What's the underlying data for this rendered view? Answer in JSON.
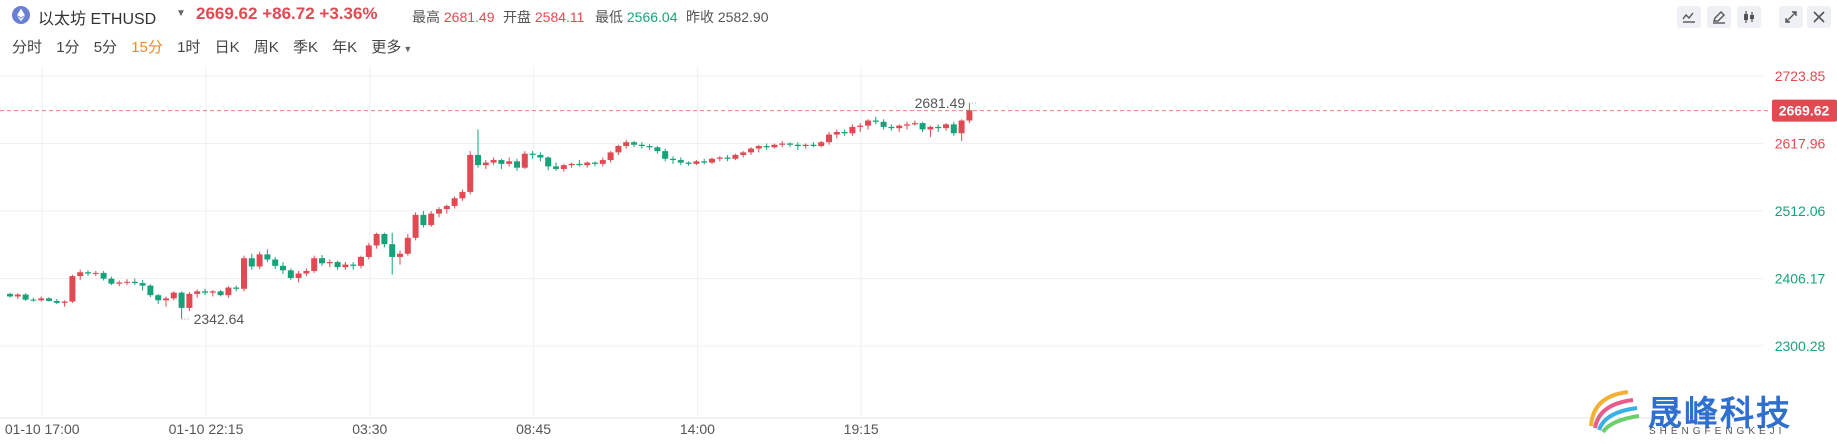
{
  "header": {
    "coin_name": "以太坊 ETHUSD",
    "last_price": "2669.62",
    "change": "+86.72",
    "change_pct": "+3.36%",
    "stats": [
      {
        "label": "最高",
        "value": "2681.49",
        "tone": "up"
      },
      {
        "label": "开盘",
        "value": "2584.11",
        "tone": "up"
      },
      {
        "label": "最低",
        "value": "2566.04",
        "tone": "down"
      },
      {
        "label": "昨收",
        "value": "2582.90",
        "tone": "neutral"
      }
    ]
  },
  "toolbar": {
    "icons": [
      "line-tool-icon",
      "pencil-icon",
      "candlestick-icon",
      "expand-icon",
      "close-icon"
    ]
  },
  "periods": [
    {
      "label": "分时",
      "active": false
    },
    {
      "label": "1分",
      "active": false
    },
    {
      "label": "5分",
      "active": false
    },
    {
      "label": "15分",
      "active": true
    },
    {
      "label": "1时",
      "active": false
    },
    {
      "label": "日K",
      "active": false
    },
    {
      "label": "周K",
      "active": false
    },
    {
      "label": "季K",
      "active": false
    },
    {
      "label": "年K",
      "active": false
    },
    {
      "label": "更多",
      "active": false,
      "dropdown": true
    }
  ],
  "chart_data": {
    "type": "candlestick",
    "y_ticks": [
      2723.85,
      2617.96,
      2512.06,
      2406.17,
      2300.28
    ],
    "ylim": [
      2300.28,
      2723.85
    ],
    "x_tick_labels": [
      {
        "label": "01-10 17:00",
        "index": 4
      },
      {
        "label": "01-10 22:15",
        "index": 25
      },
      {
        "label": "03:30",
        "index": 46
      },
      {
        "label": "08:45",
        "index": 67
      },
      {
        "label": "14:00",
        "index": 88
      },
      {
        "label": "19:15",
        "index": 109
      }
    ],
    "current_price": 2669.62,
    "high_annotation": {
      "label": "2681.49",
      "index": 124,
      "value": 2681.49
    },
    "low_annotation": {
      "label": "2342.64",
      "index": 22,
      "value": 2342.64
    },
    "colors": {
      "up": "#e24a53",
      "down": "#17a37a"
    },
    "candles": [
      [
        2382,
        2384,
        2376,
        2378
      ],
      [
        2378,
        2383,
        2374,
        2381
      ],
      [
        2381,
        2383,
        2371,
        2373
      ],
      [
        2373,
        2376,
        2370,
        2372
      ],
      [
        2372,
        2378,
        2370,
        2375
      ],
      [
        2375,
        2377,
        2370,
        2371
      ],
      [
        2371,
        2374,
        2366,
        2368
      ],
      [
        2368,
        2372,
        2362,
        2370
      ],
      [
        2370,
        2412,
        2368,
        2410
      ],
      [
        2410,
        2420,
        2404,
        2416
      ],
      [
        2416,
        2419,
        2410,
        2414
      ],
      [
        2414,
        2418,
        2410,
        2415
      ],
      [
        2415,
        2418,
        2403,
        2406
      ],
      [
        2406,
        2409,
        2396,
        2398
      ],
      [
        2398,
        2403,
        2394,
        2400
      ],
      [
        2400,
        2405,
        2396,
        2401
      ],
      [
        2401,
        2406,
        2396,
        2399
      ],
      [
        2399,
        2404,
        2387,
        2395
      ],
      [
        2395,
        2397,
        2377,
        2380
      ],
      [
        2380,
        2382,
        2366,
        2372
      ],
      [
        2372,
        2378,
        2362,
        2375
      ],
      [
        2375,
        2386,
        2372,
        2384
      ],
      [
        2384,
        2386,
        2343,
        2360
      ],
      [
        2360,
        2385,
        2355,
        2382
      ],
      [
        2382,
        2389,
        2376,
        2386
      ],
      [
        2386,
        2390,
        2380,
        2384
      ],
      [
        2384,
        2388,
        2378,
        2386
      ],
      [
        2386,
        2388,
        2378,
        2380
      ],
      [
        2380,
        2394,
        2376,
        2392
      ],
      [
        2392,
        2395,
        2386,
        2390
      ],
      [
        2390,
        2442,
        2386,
        2438
      ],
      [
        2438,
        2445,
        2420,
        2425
      ],
      [
        2425,
        2448,
        2421,
        2444
      ],
      [
        2444,
        2452,
        2432,
        2436
      ],
      [
        2436,
        2440,
        2421,
        2426
      ],
      [
        2426,
        2432,
        2413,
        2419
      ],
      [
        2419,
        2422,
        2404,
        2407
      ],
      [
        2407,
        2418,
        2400,
        2414
      ],
      [
        2414,
        2422,
        2410,
        2418
      ],
      [
        2418,
        2442,
        2415,
        2438
      ],
      [
        2438,
        2443,
        2426,
        2430
      ],
      [
        2430,
        2436,
        2424,
        2432
      ],
      [
        2432,
        2434,
        2420,
        2424
      ],
      [
        2424,
        2432,
        2420,
        2428
      ],
      [
        2428,
        2432,
        2420,
        2426
      ],
      [
        2426,
        2442,
        2422,
        2440
      ],
      [
        2440,
        2462,
        2436,
        2458
      ],
      [
        2458,
        2478,
        2453,
        2476
      ],
      [
        2476,
        2478,
        2455,
        2460
      ],
      [
        2460,
        2478,
        2412,
        2440
      ],
      [
        2440,
        2450,
        2428,
        2445
      ],
      [
        2445,
        2476,
        2442,
        2470
      ],
      [
        2470,
        2510,
        2466,
        2506
      ],
      [
        2506,
        2512,
        2486,
        2490
      ],
      [
        2490,
        2512,
        2487,
        2508
      ],
      [
        2508,
        2518,
        2502,
        2515
      ],
      [
        2515,
        2522,
        2508,
        2520
      ],
      [
        2520,
        2535,
        2516,
        2532
      ],
      [
        2532,
        2546,
        2528,
        2542
      ],
      [
        2542,
        2606,
        2538,
        2600
      ],
      [
        2600,
        2640,
        2580,
        2584
      ],
      [
        2584,
        2592,
        2578,
        2588
      ],
      [
        2588,
        2596,
        2584,
        2592
      ],
      [
        2592,
        2594,
        2578,
        2586
      ],
      [
        2586,
        2596,
        2582,
        2590
      ],
      [
        2590,
        2594,
        2575,
        2580
      ],
      [
        2580,
        2606,
        2578,
        2602
      ],
      [
        2602,
        2606,
        2594,
        2600
      ],
      [
        2600,
        2604,
        2590,
        2596
      ],
      [
        2596,
        2598,
        2576,
        2582
      ],
      [
        2582,
        2588,
        2575,
        2578
      ],
      [
        2578,
        2586,
        2574,
        2584
      ],
      [
        2584,
        2588,
        2580,
        2586
      ],
      [
        2586,
        2592,
        2582,
        2584
      ],
      [
        2584,
        2590,
        2580,
        2588
      ],
      [
        2588,
        2590,
        2582,
        2586
      ],
      [
        2586,
        2596,
        2582,
        2592
      ],
      [
        2592,
        2606,
        2588,
        2604
      ],
      [
        2604,
        2616,
        2600,
        2614
      ],
      [
        2614,
        2624,
        2610,
        2620
      ],
      [
        2620,
        2622,
        2612,
        2616
      ],
      [
        2616,
        2620,
        2610,
        2614
      ],
      [
        2614,
        2617,
        2608,
        2612
      ],
      [
        2612,
        2614,
        2602,
        2606
      ],
      [
        2606,
        2610,
        2590,
        2594
      ],
      [
        2594,
        2598,
        2586,
        2592
      ],
      [
        2592,
        2596,
        2584,
        2588
      ],
      [
        2588,
        2590,
        2583,
        2586
      ],
      [
        2586,
        2592,
        2584,
        2590
      ],
      [
        2590,
        2594,
        2585,
        2588
      ],
      [
        2588,
        2596,
        2586,
        2594
      ],
      [
        2594,
        2598,
        2590,
        2596
      ],
      [
        2596,
        2600,
        2590,
        2594
      ],
      [
        2594,
        2602,
        2592,
        2600
      ],
      [
        2600,
        2606,
        2596,
        2604
      ],
      [
        2604,
        2612,
        2600,
        2610
      ],
      [
        2610,
        2616,
        2604,
        2614
      ],
      [
        2614,
        2618,
        2608,
        2612
      ],
      [
        2612,
        2618,
        2610,
        2616
      ],
      [
        2616,
        2622,
        2612,
        2618
      ],
      [
        2618,
        2620,
        2612,
        2616
      ],
      [
        2616,
        2620,
        2608,
        2614
      ],
      [
        2614,
        2618,
        2610,
        2616
      ],
      [
        2616,
        2620,
        2612,
        2614
      ],
      [
        2614,
        2622,
        2612,
        2620
      ],
      [
        2620,
        2636,
        2616,
        2632
      ],
      [
        2632,
        2640,
        2626,
        2636
      ],
      [
        2636,
        2640,
        2630,
        2634
      ],
      [
        2634,
        2648,
        2630,
        2644
      ],
      [
        2644,
        2650,
        2636,
        2646
      ],
      [
        2646,
        2656,
        2640,
        2654
      ],
      [
        2654,
        2660,
        2648,
        2652
      ],
      [
        2652,
        2656,
        2640,
        2644
      ],
      [
        2644,
        2648,
        2638,
        2642
      ],
      [
        2642,
        2648,
        2636,
        2646
      ],
      [
        2646,
        2652,
        2640,
        2648
      ],
      [
        2648,
        2654,
        2646,
        2650
      ],
      [
        2650,
        2652,
        2636,
        2640
      ],
      [
        2640,
        2646,
        2628,
        2644
      ],
      [
        2644,
        2648,
        2636,
        2642
      ],
      [
        2642,
        2650,
        2638,
        2648
      ],
      [
        2648,
        2652,
        2630,
        2634
      ],
      [
        2634,
        2656,
        2622,
        2654
      ],
      [
        2654,
        2681,
        2650,
        2670
      ]
    ]
  }
}
